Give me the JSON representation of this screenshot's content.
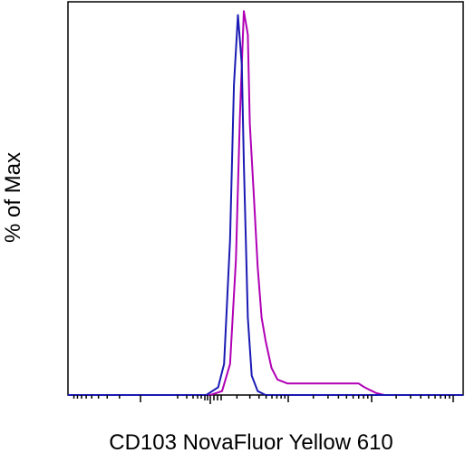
{
  "chart_data": {
    "type": "line",
    "title": "",
    "xlabel": "CD103 NovaFluor Yellow 610",
    "ylabel": "% of Max",
    "xscale": "biexponential",
    "tick_labels": "none",
    "grid": false,
    "legend": "none",
    "ylim": [
      0,
      100
    ],
    "series": [
      {
        "color": "#b000b5",
        "x": [
          0,
          0.36,
          0.39,
          0.41,
          0.425,
          0.435,
          0.445,
          0.455,
          0.46,
          0.47,
          0.48,
          0.49,
          0.5,
          0.515,
          0.53,
          0.555,
          0.6,
          0.65,
          0.7,
          0.735,
          0.75,
          0.76,
          0.77,
          0.78,
          0.8,
          1
        ],
        "y": [
          0,
          0,
          1,
          8,
          35,
          72,
          99,
          93,
          70,
          52,
          33,
          20,
          14,
          7,
          4,
          3,
          3,
          3,
          3,
          3,
          2,
          1.5,
          1,
          0.5,
          0,
          0
        ]
      },
      {
        "color": "#1a1ab4",
        "x": [
          0,
          0.35,
          0.38,
          0.395,
          0.41,
          0.42,
          0.43,
          0.44,
          0.445,
          0.455,
          0.465,
          0.48,
          0.5,
          1
        ],
        "y": [
          0,
          0,
          2,
          8,
          40,
          80,
          98,
          85,
          60,
          20,
          5,
          1,
          0,
          0
        ]
      }
    ]
  }
}
